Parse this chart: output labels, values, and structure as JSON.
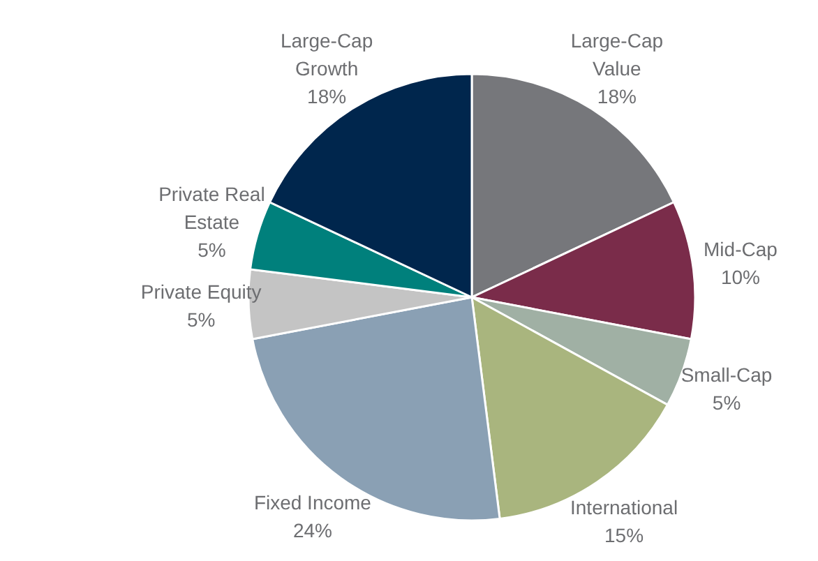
{
  "chart_data": {
    "type": "pie",
    "categories": [
      "Large-Cap Value",
      "Mid-Cap",
      "Small-Cap",
      "International",
      "Fixed Income",
      "Private Equity",
      "Private Real Estate",
      "Large-Cap Growth"
    ],
    "values": [
      18,
      10,
      5,
      15,
      24,
      5,
      5,
      18
    ],
    "value_labels": [
      "18%",
      "10%",
      "5%",
      "15%",
      "24%",
      "5%",
      "5%",
      "18%"
    ],
    "colors": [
      "#76777b",
      "#7a2c4a",
      "#a0b0a4",
      "#a9b57e",
      "#8aa0b4",
      "#c4c4c4",
      "#00807c",
      "#00264d"
    ],
    "legend": false
  }
}
